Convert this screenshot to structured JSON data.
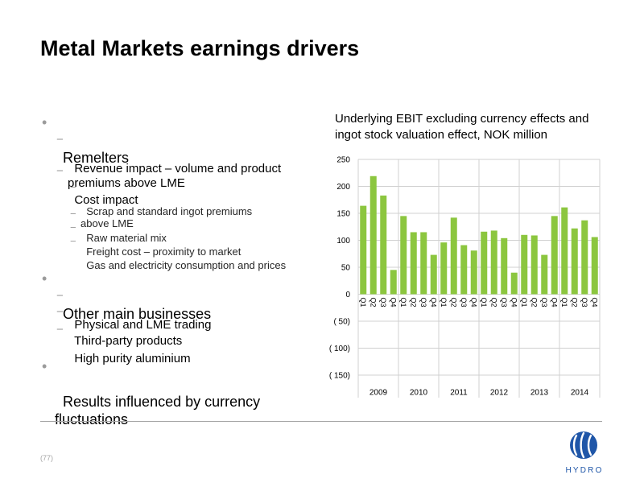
{
  "slide": {
    "title": "Metal Markets earnings drivers",
    "page_number": "(77)"
  },
  "bullets": {
    "remelters": {
      "label": "Remelters",
      "revenue_impact": "Revenue impact – volume and product\npremiums above LME",
      "cost_impact": "Cost impact",
      "cost_items": [
        "Scrap and standard ingot premiums\nabove LME",
        "Raw material mix",
        "Freight cost – proximity to market",
        "Gas and electricity consumption and prices"
      ]
    },
    "other_businesses": {
      "label": "Other main businesses",
      "items": [
        "Physical and LME trading",
        "Third-party products",
        "High purity aluminium"
      ]
    },
    "currency": {
      "label": "Results influenced by currency\nfluctuations"
    }
  },
  "logo": {
    "text": "HYDRO",
    "icon": "hydro-logo-icon"
  },
  "colors": {
    "text": "#000000",
    "sub_text": "#262626",
    "marker": "#9b9b9b",
    "bar": "#8cc63f",
    "grid": "#d0d0d0",
    "rule": "#a6a6a6",
    "page_number": "#a6a6a6",
    "logo": "#1f56a8"
  },
  "chart_data": {
    "type": "bar",
    "title": "Underlying EBIT excluding currency effects and\ningot stock valuation effect, NOK million",
    "ylim": [
      -150,
      250
    ],
    "y_ticks": [
      250,
      200,
      150,
      100,
      50,
      0,
      -50,
      -100,
      -150
    ],
    "y_tick_labels": [
      "250",
      "200",
      "150",
      "100",
      "50",
      "0",
      "( 50)",
      "( 100)",
      "( 150)"
    ],
    "grid": true,
    "groups": [
      {
        "label": "2009",
        "categories": [
          "Q1",
          "Q2",
          "Q3",
          "Q4"
        ],
        "values": [
          164,
          219,
          183,
          45
        ]
      },
      {
        "label": "2010",
        "categories": [
          "Q1",
          "Q2",
          "Q3",
          "Q4"
        ],
        "values": [
          145,
          115,
          115,
          73
        ]
      },
      {
        "label": "2011",
        "categories": [
          "Q1",
          "Q2",
          "Q3",
          "Q4"
        ],
        "values": [
          96,
          142,
          91,
          81
        ]
      },
      {
        "label": "2012",
        "categories": [
          "Q1",
          "Q2",
          "Q3",
          "Q4"
        ],
        "values": [
          116,
          118,
          104,
          40
        ]
      },
      {
        "label": "2013",
        "categories": [
          "Q1",
          "Q2",
          "Q3",
          "Q4"
        ],
        "values": [
          110,
          109,
          73,
          145
        ]
      },
      {
        "label": "2014",
        "categories": [
          "Q1",
          "Q2",
          "Q3",
          "Q4"
        ],
        "values": [
          161,
          122,
          137,
          106
        ]
      }
    ]
  }
}
